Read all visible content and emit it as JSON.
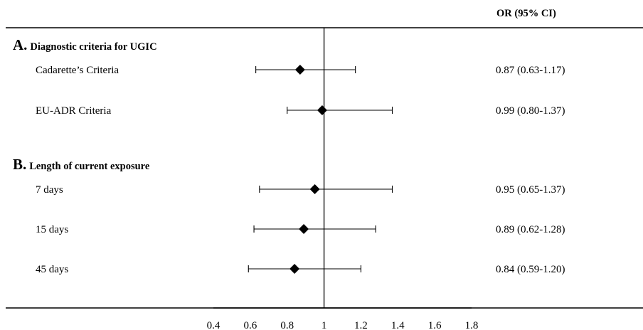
{
  "chart_data": {
    "type": "forest",
    "header_or": "OR  (95% CI)",
    "sections": [
      {
        "letter": "A.",
        "title": "Diagnostic criteria for UGIC",
        "rows": [
          {
            "label": "Cadarette’s Criteria",
            "or": 0.87,
            "lo": 0.63,
            "hi": 1.17,
            "text": "0.87 (0.63-1.17)"
          },
          {
            "label": "EU-ADR Criteria",
            "or": 0.99,
            "lo": 0.8,
            "hi": 1.37,
            "text": "0.99 (0.80-1.37)"
          }
        ]
      },
      {
        "letter": "B.",
        "title": "Length of current exposure",
        "rows": [
          {
            "label": "7 days",
            "or": 0.95,
            "lo": 0.65,
            "hi": 1.37,
            "text": "0.95 (0.65-1.37)"
          },
          {
            "label": "15 days",
            "or": 0.89,
            "lo": 0.62,
            "hi": 1.28,
            "text": "0.89 (0.62-1.28)"
          },
          {
            "label": "45 days",
            "or": 0.84,
            "lo": 0.59,
            "hi": 1.2,
            "text": "0.84 (0.59-1.20)"
          }
        ]
      }
    ],
    "reference_line": 1,
    "xlim": [
      0.4,
      1.8
    ],
    "xticks": [
      "0.4",
      "0.6",
      "0.8",
      "1",
      "1.2",
      "1.4",
      "1.6",
      "1.8"
    ]
  }
}
